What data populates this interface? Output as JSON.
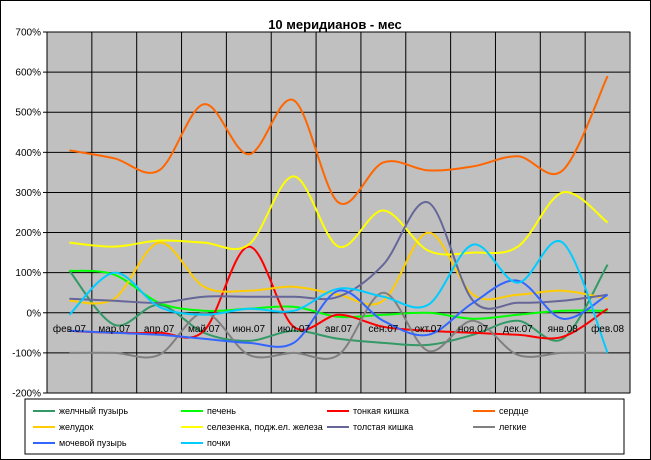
{
  "chart_data": {
    "type": "line",
    "title": "10 меридианов - мес",
    "categories": [
      "фев.07",
      "мар.07",
      "апр.07",
      "май.07",
      "июн.07",
      "июл.07",
      "авг.07",
      "сен.07",
      "окт.07",
      "ноя.07",
      "дек.07",
      "янв.08",
      "фев.08"
    ],
    "ylim": [
      -200,
      700
    ],
    "yticks": [
      -200,
      -100,
      0,
      100,
      200,
      300,
      400,
      500,
      600,
      700
    ],
    "ytick_labels": [
      "-200%",
      "-100%",
      "0%",
      "100%",
      "200%",
      "300%",
      "400%",
      "500%",
      "600%",
      "700%"
    ],
    "plot_background": "#C0C0C0",
    "grid": true,
    "legend_position": "bottom",
    "series": [
      {
        "name": "желчный пузырь",
        "color": "#339966",
        "values": [
          105,
          -30,
          20,
          -50,
          -70,
          -45,
          -65,
          -75,
          -80,
          -55,
          -20,
          -65,
          120
        ]
      },
      {
        "name": "печень",
        "color": "#00FF00",
        "values": [
          105,
          95,
          25,
          5,
          10,
          15,
          -10,
          -5,
          0,
          -15,
          -5,
          5,
          5
        ]
      },
      {
        "name": "тонкая кишка",
        "color": "#FF0000",
        "values": [
          -45,
          -50,
          -50,
          -45,
          165,
          -35,
          -5,
          -35,
          -45,
          -50,
          -55,
          -60,
          10
        ]
      },
      {
        "name": "сердце",
        "color": "#FF6600",
        "values": [
          405,
          385,
          355,
          520,
          395,
          530,
          275,
          375,
          355,
          365,
          390,
          355,
          590
        ]
      },
      {
        "name": "желудок",
        "color": "#FFCC00",
        "values": [
          30,
          35,
          175,
          65,
          55,
          65,
          45,
          30,
          200,
          45,
          45,
          55,
          35
        ]
      },
      {
        "name": "селезенка, подж.ел. железа",
        "color": "#FFFF00",
        "values": [
          175,
          165,
          180,
          175,
          170,
          340,
          165,
          255,
          155,
          150,
          165,
          300,
          225
        ]
      },
      {
        "name": "толстая кишка",
        "color": "#666699",
        "values": [
          35,
          30,
          25,
          40,
          40,
          40,
          40,
          120,
          275,
          30,
          25,
          30,
          45
        ]
      },
      {
        "name": "легкие",
        "color": "#808080",
        "values": [
          -100,
          -100,
          -105,
          0,
          -105,
          -100,
          -105,
          50,
          -95,
          -20,
          -105,
          -100,
          -100
        ]
      },
      {
        "name": "мочевой пузырь",
        "color": "#3366FF",
        "values": [
          -45,
          -50,
          -55,
          -65,
          -75,
          -75,
          55,
          -20,
          -55,
          25,
          80,
          -15,
          45
        ]
      },
      {
        "name": "почки",
        "color": "#00CCFF",
        "values": [
          -5,
          100,
          15,
          -5,
          10,
          5,
          60,
          40,
          20,
          170,
          75,
          175,
          -100
        ]
      }
    ]
  }
}
